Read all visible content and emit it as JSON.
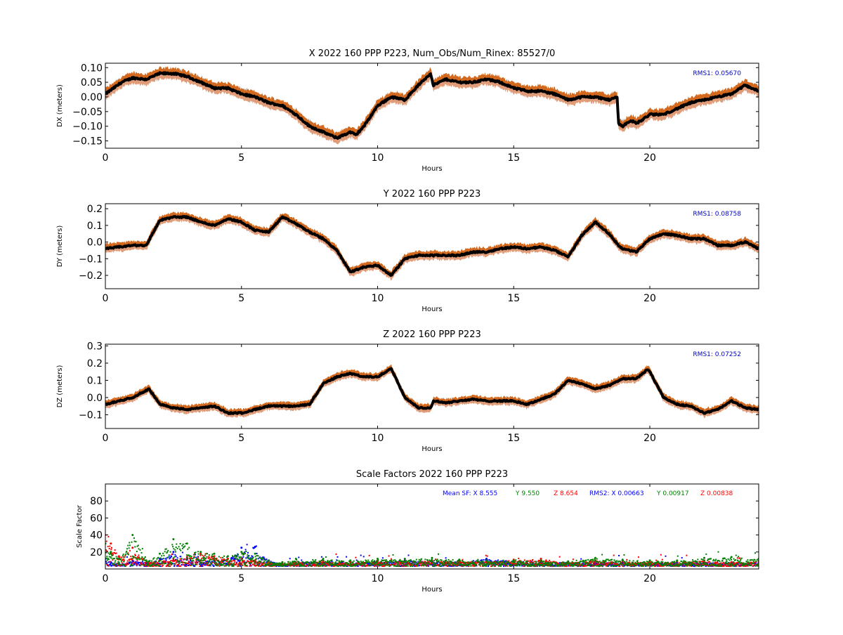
{
  "colors": {
    "band_upper": "#d2691e",
    "band_lower": "#e09c78",
    "series": "#000000",
    "rms_text": "#0000cc",
    "sf_x": "#0000ff",
    "sf_y": "#008000",
    "sf_z": "#ff0000"
  },
  "chart_data": [
    {
      "type": "line",
      "title": "X 2022 160 PPP  P223, Num_Obs/Num_Rinex: 85527/0",
      "xlabel": "Hours",
      "ylabel": "DX (meters)",
      "xlim": [
        0,
        24
      ],
      "ylim": [
        -0.175,
        0.115
      ],
      "xticks": [
        0,
        5,
        10,
        15,
        20
      ],
      "yticks": [
        0.1,
        0.05,
        0.0,
        -0.05,
        -0.1,
        -0.15
      ],
      "ytick_labels": [
        "0.10",
        "0.05",
        "0.00",
        "−0.05",
        "−0.10",
        "−0.15"
      ],
      "xtick_labels": [
        "0",
        "5",
        "10",
        "15",
        "20"
      ],
      "annotation": "RMS1:  0.05670",
      "band_halfwidth": 0.018,
      "series": [
        {
          "x": [
            0,
            0.3,
            0.6,
            1.0,
            1.5,
            2.0,
            2.5,
            3.0,
            3.5,
            4.0,
            4.5,
            5.0,
            5.5,
            6.0,
            6.5,
            7.0,
            7.5,
            8.0,
            8.5,
            9.0,
            9.2,
            9.5,
            10.0,
            10.5,
            11.0,
            11.5,
            11.95,
            12.05,
            12.5,
            13.0,
            13.5,
            14.0,
            14.5,
            15.0,
            15.5,
            16.0,
            16.5,
            17.0,
            17.5,
            18.0,
            18.5,
            18.8,
            18.85,
            19.0,
            19.3,
            19.5,
            19.7,
            20.0,
            20.5,
            21.0,
            21.5,
            22.0,
            22.5,
            23.0,
            23.5,
            24.0
          ],
          "y": [
            0.01,
            0.03,
            0.05,
            0.065,
            0.06,
            0.08,
            0.08,
            0.07,
            0.05,
            0.03,
            0.03,
            0.01,
            0.0,
            -0.02,
            -0.03,
            -0.06,
            -0.1,
            -0.12,
            -0.14,
            -0.12,
            -0.13,
            -0.1,
            -0.03,
            0.0,
            -0.01,
            0.04,
            0.08,
            0.04,
            0.06,
            0.05,
            0.05,
            0.06,
            0.05,
            0.03,
            0.02,
            0.02,
            0.01,
            -0.01,
            0.0,
            0.0,
            -0.01,
            0.0,
            -0.09,
            -0.1,
            -0.08,
            -0.09,
            -0.08,
            -0.06,
            -0.06,
            -0.04,
            -0.02,
            -0.01,
            0.0,
            0.01,
            0.04,
            0.02
          ]
        }
      ]
    },
    {
      "type": "line",
      "title": "Y 2022 160 PPP  P223",
      "xlabel": "Hours",
      "ylabel": "DY (meters)",
      "xlim": [
        0,
        24
      ],
      "ylim": [
        -0.28,
        0.23
      ],
      "xticks": [
        0,
        5,
        10,
        15,
        20
      ],
      "yticks": [
        0.2,
        0.1,
        0.0,
        -0.1,
        -0.2
      ],
      "ytick_labels": [
        "0.2",
        "0.1",
        "0.0",
        "−0.1",
        "−0.2"
      ],
      "xtick_labels": [
        "0",
        "5",
        "10",
        "15",
        "20"
      ],
      "annotation": "RMS1:  0.08758",
      "band_halfwidth": 0.025,
      "series": [
        {
          "x": [
            0,
            0.5,
            1.0,
            1.5,
            2.0,
            2.5,
            3.0,
            3.5,
            4.0,
            4.5,
            5.0,
            5.5,
            6.0,
            6.5,
            7.0,
            7.5,
            8.0,
            8.5,
            9.0,
            9.5,
            10.0,
            10.5,
            11.0,
            11.5,
            12.0,
            12.5,
            13.0,
            13.5,
            14.0,
            14.5,
            15.0,
            15.5,
            16.0,
            16.5,
            17.0,
            17.5,
            18.0,
            18.5,
            18.9,
            19.0,
            19.5,
            20.0,
            20.5,
            21.0,
            21.5,
            22.0,
            22.5,
            23.0,
            23.5,
            24.0
          ],
          "y": [
            -0.04,
            -0.03,
            -0.02,
            -0.02,
            0.13,
            0.15,
            0.15,
            0.12,
            0.1,
            0.14,
            0.12,
            0.07,
            0.06,
            0.15,
            0.11,
            0.06,
            0.02,
            -0.05,
            -0.18,
            -0.15,
            -0.14,
            -0.2,
            -0.1,
            -0.08,
            -0.08,
            -0.08,
            -0.08,
            -0.06,
            -0.06,
            -0.04,
            -0.03,
            -0.04,
            -0.03,
            -0.05,
            -0.09,
            0.04,
            0.12,
            0.05,
            -0.03,
            -0.04,
            -0.06,
            0.02,
            0.05,
            0.04,
            0.02,
            0.02,
            -0.02,
            -0.02,
            0.0,
            -0.04
          ]
        }
      ]
    },
    {
      "type": "line",
      "title": "Z 2022 160 PPP  P223",
      "xlabel": "Hours",
      "ylabel": "DZ (meters)",
      "xlim": [
        0,
        24
      ],
      "ylim": [
        -0.18,
        0.31
      ],
      "xticks": [
        0,
        5,
        10,
        15,
        20
      ],
      "yticks": [
        0.3,
        0.2,
        0.1,
        0.0,
        -0.1
      ],
      "ytick_labels": [
        "0.3",
        "0.2",
        "0.1",
        "0.0",
        "−0.1"
      ],
      "xtick_labels": [
        "0",
        "5",
        "10",
        "15",
        "20"
      ],
      "annotation": "RMS1:  0.07252",
      "band_halfwidth": 0.022,
      "series": [
        {
          "x": [
            0,
            0.5,
            1.0,
            1.6,
            2.0,
            2.5,
            3.0,
            3.5,
            4.0,
            4.5,
            5.0,
            5.5,
            6.0,
            6.5,
            7.0,
            7.5,
            8.0,
            8.5,
            9.0,
            9.5,
            10.0,
            10.5,
            11.0,
            11.5,
            11.95,
            12.05,
            12.5,
            13.0,
            13.5,
            14.0,
            14.5,
            15.0,
            15.5,
            16.0,
            16.5,
            17.0,
            17.5,
            18.0,
            18.5,
            19.0,
            19.5,
            19.9,
            20.0,
            20.5,
            21.0,
            21.5,
            22.0,
            22.5,
            23.0,
            23.5,
            24.0
          ],
          "y": [
            -0.04,
            -0.02,
            0.0,
            0.05,
            -0.04,
            -0.06,
            -0.07,
            -0.06,
            -0.05,
            -0.09,
            -0.09,
            -0.07,
            -0.05,
            -0.05,
            -0.05,
            -0.04,
            0.08,
            0.12,
            0.14,
            0.12,
            0.12,
            0.17,
            0.0,
            -0.06,
            -0.06,
            -0.02,
            -0.03,
            -0.02,
            -0.01,
            -0.02,
            -0.02,
            -0.02,
            -0.04,
            -0.01,
            0.02,
            0.1,
            0.08,
            0.05,
            0.07,
            0.11,
            0.11,
            0.16,
            0.15,
            0.0,
            -0.04,
            -0.05,
            -0.09,
            -0.07,
            -0.02,
            -0.06,
            -0.07
          ]
        }
      ]
    },
    {
      "type": "scatter",
      "title": "Scale Factors 2022 160 PPP  P223",
      "xlabel": "Hours",
      "ylabel": "Scale Factor",
      "xlim": [
        0,
        24
      ],
      "ylim": [
        0,
        100
      ],
      "xticks": [
        0,
        5,
        10,
        15,
        20
      ],
      "yticks": [
        80,
        60,
        40,
        20
      ],
      "ytick_labels": [
        "80",
        "60",
        "40",
        "20"
      ],
      "xtick_labels": [
        "0",
        "5",
        "10",
        "15",
        "20"
      ],
      "legend_text": [
        {
          "text": "Mean SF: X   8.555",
          "color_key": "sf_x"
        },
        {
          "text": "Y   9.550",
          "color_key": "sf_y"
        },
        {
          "text": "Z   8.654",
          "color_key": "sf_z"
        },
        {
          "text": "RMS2: X  0.00663",
          "color_key": "sf_x"
        },
        {
          "text": "Y  0.00917",
          "color_key": "sf_y"
        },
        {
          "text": "Z  0.00838",
          "color_key": "sf_z"
        }
      ],
      "series": [
        {
          "name": "X",
          "x": [
            0.0,
            0.2,
            0.5,
            1.0,
            1.5,
            2.0,
            2.5,
            3.0,
            3.5,
            4.0,
            4.5,
            5.0,
            5.5,
            6.0,
            6.5,
            7.0,
            8.0,
            9.0,
            10.0,
            11.0,
            12.0,
            13.0,
            14.0,
            15.0,
            16.0,
            17.0,
            18.0,
            19.0,
            20.0,
            21.0,
            22.0,
            23.0,
            24.0
          ],
          "y": [
            12,
            8,
            6,
            10,
            7,
            12,
            20,
            12,
            10,
            10,
            12,
            25,
            26,
            10,
            6,
            8,
            9,
            8,
            9,
            10,
            10,
            9,
            12,
            10,
            9,
            8,
            8,
            8,
            7,
            8,
            8,
            8,
            8
          ]
        },
        {
          "name": "Y",
          "x": [
            0.0,
            0.2,
            0.5,
            1.0,
            1.5,
            2.0,
            2.5,
            3.0,
            3.5,
            4.0,
            4.5,
            5.0,
            5.5,
            6.0,
            6.5,
            7.0,
            8.0,
            9.0,
            10.0,
            11.0,
            12.0,
            13.0,
            14.0,
            15.0,
            16.0,
            17.0,
            18.0,
            19.0,
            20.0,
            21.0,
            22.0,
            23.0,
            24.0
          ],
          "y": [
            30,
            20,
            12,
            40,
            10,
            18,
            35,
            30,
            20,
            18,
            15,
            20,
            18,
            10,
            8,
            12,
            12,
            10,
            12,
            12,
            13,
            11,
            10,
            10,
            10,
            9,
            13,
            11,
            10,
            10,
            13,
            14,
            12
          ]
        },
        {
          "name": "Z",
          "x": [
            0.0,
            0.2,
            0.5,
            1.0,
            1.5,
            2.0,
            2.5,
            3.0,
            3.5,
            4.0,
            4.5,
            5.0,
            5.5,
            6.0,
            6.5,
            7.0,
            8.0,
            9.0,
            10.0,
            11.0,
            12.0,
            13.0,
            14.0,
            15.0,
            16.0,
            17.0,
            18.0,
            19.0,
            20.0,
            21.0,
            22.0,
            23.0,
            24.0
          ],
          "y": [
            40,
            30,
            15,
            25,
            10,
            10,
            12,
            14,
            18,
            15,
            12,
            12,
            10,
            8,
            7,
            8,
            9,
            8,
            9,
            9,
            10,
            9,
            9,
            11,
            12,
            8,
            10,
            9,
            8,
            9,
            10,
            8,
            9
          ]
        }
      ]
    }
  ]
}
